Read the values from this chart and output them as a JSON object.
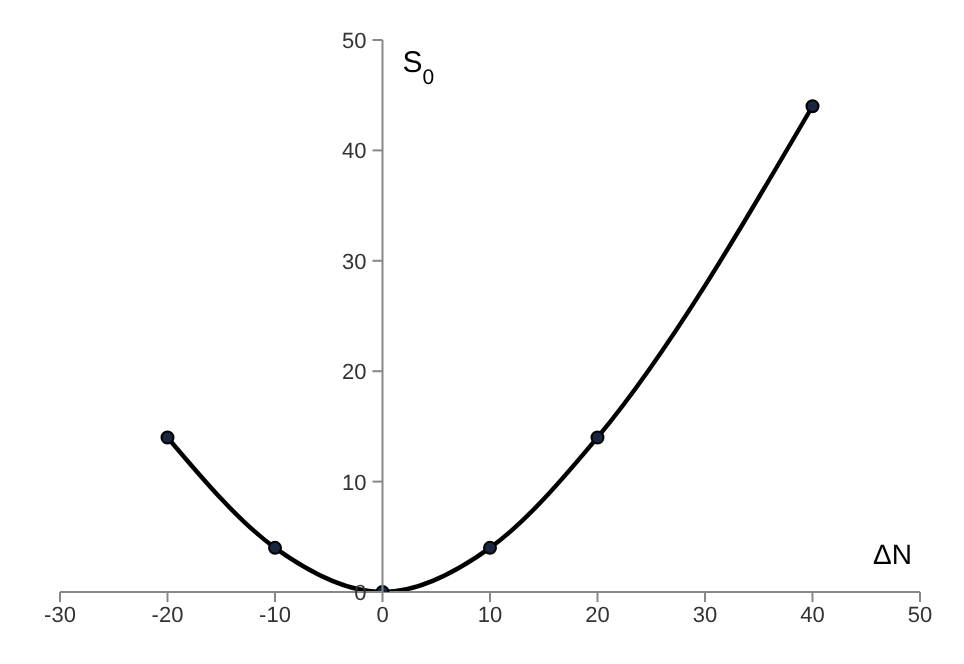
{
  "chart_data": {
    "type": "line",
    "xlabel": "ΔN",
    "ylabel": "S$_{0}$",
    "x": [
      -20,
      -10,
      0,
      10,
      20,
      40
    ],
    "series": [
      {
        "color": "#000000",
        "values": [
          14,
          4,
          0,
          4,
          14,
          44
        ]
      }
    ],
    "xlim": [
      -30,
      50
    ],
    "xticks": [
      -30,
      -20,
      -10,
      0,
      10,
      20,
      30,
      40,
      50
    ],
    "ylim": [
      0,
      50
    ],
    "yticks": [
      0,
      10,
      20,
      30,
      40,
      50
    ],
    "marker": "circle",
    "line_style": "solid"
  }
}
